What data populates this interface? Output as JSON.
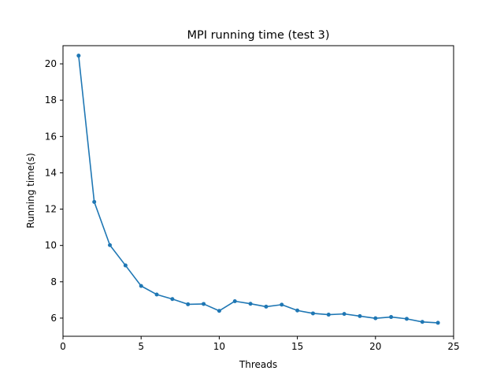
{
  "chart_data": {
    "type": "line",
    "title": "MPI running time (test 3)",
    "xlabel": "Threads",
    "ylabel": "Running time(s)",
    "xlim": [
      0,
      25
    ],
    "ylim": [
      5,
      21
    ],
    "x_ticks": [
      0,
      5,
      10,
      15,
      20,
      25
    ],
    "y_ticks": [
      6,
      8,
      10,
      12,
      14,
      16,
      18,
      20
    ],
    "grid": false,
    "legend": "none",
    "series": [
      {
        "color": "#1f77b4",
        "marker": "circle",
        "x": [
          1,
          2,
          3,
          4,
          5,
          6,
          7,
          8,
          9,
          10,
          11,
          12,
          13,
          14,
          15,
          16,
          17,
          18,
          19,
          20,
          21,
          22,
          23,
          24
        ],
        "y": [
          20.45,
          12.4,
          10.02,
          8.9,
          7.77,
          7.3,
          7.05,
          6.76,
          6.78,
          6.4,
          6.93,
          6.79,
          6.63,
          6.74,
          6.42,
          6.26,
          6.19,
          6.23,
          6.11,
          5.99,
          6.06,
          5.96,
          5.79,
          5.74
        ]
      }
    ]
  }
}
